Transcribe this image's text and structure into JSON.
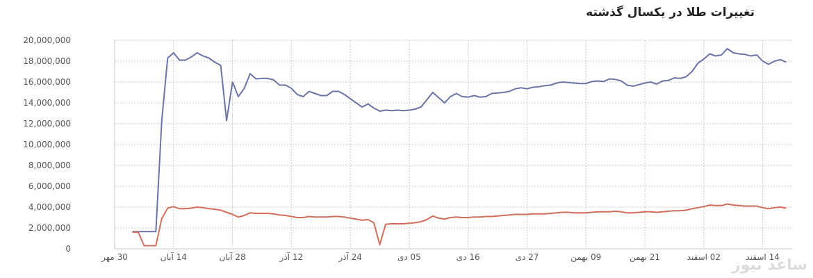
{
  "chart_data": {
    "type": "line",
    "title": "تغییرات طلا در یکسال گذشته",
    "xlabel": "",
    "ylabel": "",
    "ylim": [
      0,
      20000000
    ],
    "grid": true,
    "legend": "none",
    "y_ticks": [
      {
        "value": 0,
        "label": "0"
      },
      {
        "value": 2000000,
        "label": "2,000,000"
      },
      {
        "value": 4000000,
        "label": "4,000,000"
      },
      {
        "value": 6000000,
        "label": "6,000,000"
      },
      {
        "value": 8000000,
        "label": "8,000,000"
      },
      {
        "value": 10000000,
        "label": "10,000,000"
      },
      {
        "value": 12000000,
        "label": "12,000,000"
      },
      {
        "value": 14000000,
        "label": "14,000,000"
      },
      {
        "value": 16000000,
        "label": "16,000,000"
      },
      {
        "value": 18000000,
        "label": "18,000,000"
      },
      {
        "value": 20000000,
        "label": "20,000,000"
      }
    ],
    "x_ticks": [
      {
        "value": 0,
        "label": "30 مهر"
      },
      {
        "value": 1,
        "label": "14 آبان"
      },
      {
        "value": 2,
        "label": "28 آبان"
      },
      {
        "value": 3,
        "label": "12 آذر"
      },
      {
        "value": 4,
        "label": "24 آذر"
      },
      {
        "value": 5,
        "label": "05 دی"
      },
      {
        "value": 6,
        "label": "16 دی"
      },
      {
        "value": 7,
        "label": "27 دی"
      },
      {
        "value": 8,
        "label": "09 بهمن"
      },
      {
        "value": 9,
        "label": "21 بهمن"
      },
      {
        "value": 10,
        "label": "02 اسفند"
      },
      {
        "value": 11,
        "label": "14 اسفند"
      }
    ],
    "series": [
      {
        "color": "#6b74a6",
        "points": [
          [
            0.3,
            1650000
          ],
          [
            0.5,
            1650000
          ],
          [
            0.7,
            1650000
          ],
          [
            0.8,
            12300000
          ],
          [
            0.9,
            18300000
          ],
          [
            1.0,
            18800000
          ],
          [
            1.1,
            18100000
          ],
          [
            1.2,
            18100000
          ],
          [
            1.3,
            18400000
          ],
          [
            1.4,
            18800000
          ],
          [
            1.5,
            18500000
          ],
          [
            1.6,
            18300000
          ],
          [
            1.7,
            17900000
          ],
          [
            1.8,
            17600000
          ],
          [
            1.9,
            12300000
          ],
          [
            2.0,
            16000000
          ],
          [
            2.1,
            14600000
          ],
          [
            2.2,
            15400000
          ],
          [
            2.3,
            16800000
          ],
          [
            2.4,
            16300000
          ],
          [
            2.5,
            16350000
          ],
          [
            2.6,
            16350000
          ],
          [
            2.7,
            16200000
          ],
          [
            2.8,
            15700000
          ],
          [
            2.9,
            15700000
          ],
          [
            3.0,
            15400000
          ],
          [
            3.1,
            14800000
          ],
          [
            3.2,
            14600000
          ],
          [
            3.3,
            15100000
          ],
          [
            3.4,
            14900000
          ],
          [
            3.5,
            14700000
          ],
          [
            3.6,
            14700000
          ],
          [
            3.7,
            15100000
          ],
          [
            3.8,
            15100000
          ],
          [
            3.9,
            14800000
          ],
          [
            4.0,
            14400000
          ],
          [
            4.1,
            14000000
          ],
          [
            4.2,
            13600000
          ],
          [
            4.3,
            13900000
          ],
          [
            4.4,
            13500000
          ],
          [
            4.5,
            13200000
          ],
          [
            4.6,
            13300000
          ],
          [
            4.7,
            13250000
          ],
          [
            4.8,
            13300000
          ],
          [
            4.9,
            13250000
          ],
          [
            5.0,
            13300000
          ],
          [
            5.1,
            13400000
          ],
          [
            5.2,
            13600000
          ],
          [
            5.4,
            15000000
          ],
          [
            5.5,
            14500000
          ],
          [
            5.6,
            14000000
          ],
          [
            5.7,
            14600000
          ],
          [
            5.8,
            14900000
          ],
          [
            5.9,
            14600000
          ],
          [
            6.0,
            14550000
          ],
          [
            6.1,
            14700000
          ],
          [
            6.2,
            14550000
          ],
          [
            6.3,
            14600000
          ],
          [
            6.4,
            14900000
          ],
          [
            6.5,
            14950000
          ],
          [
            6.6,
            15000000
          ],
          [
            6.7,
            15100000
          ],
          [
            6.8,
            15350000
          ],
          [
            6.9,
            15450000
          ],
          [
            7.0,
            15350000
          ],
          [
            7.1,
            15500000
          ],
          [
            7.2,
            15550000
          ],
          [
            7.3,
            15650000
          ],
          [
            7.4,
            15700000
          ],
          [
            7.5,
            15900000
          ],
          [
            7.6,
            16000000
          ],
          [
            7.7,
            15950000
          ],
          [
            7.8,
            15900000
          ],
          [
            7.9,
            15850000
          ],
          [
            8.0,
            15850000
          ],
          [
            8.1,
            16050000
          ],
          [
            8.2,
            16100000
          ],
          [
            8.3,
            16050000
          ],
          [
            8.4,
            16300000
          ],
          [
            8.5,
            16250000
          ],
          [
            8.6,
            16100000
          ],
          [
            8.7,
            15700000
          ],
          [
            8.8,
            15600000
          ],
          [
            8.9,
            15750000
          ],
          [
            9.0,
            15900000
          ],
          [
            9.1,
            16000000
          ],
          [
            9.2,
            15800000
          ],
          [
            9.3,
            16100000
          ],
          [
            9.4,
            16150000
          ],
          [
            9.5,
            16400000
          ],
          [
            9.6,
            16350000
          ],
          [
            9.7,
            16500000
          ],
          [
            9.8,
            17000000
          ],
          [
            9.9,
            17800000
          ],
          [
            10.0,
            18200000
          ],
          [
            10.1,
            18700000
          ],
          [
            10.2,
            18500000
          ],
          [
            10.3,
            18600000
          ],
          [
            10.4,
            19200000
          ],
          [
            10.5,
            18800000
          ],
          [
            10.6,
            18700000
          ],
          [
            10.7,
            18650000
          ],
          [
            10.8,
            18500000
          ],
          [
            10.9,
            18600000
          ],
          [
            11.0,
            18000000
          ],
          [
            11.1,
            17700000
          ],
          [
            11.2,
            18000000
          ],
          [
            11.3,
            18150000
          ],
          [
            11.4,
            17900000
          ]
        ]
      },
      {
        "color": "#d36d5b",
        "points": [
          [
            0.3,
            1600000
          ],
          [
            0.4,
            1600000
          ],
          [
            0.5,
            300000
          ],
          [
            0.6,
            300000
          ],
          [
            0.7,
            300000
          ],
          [
            0.8,
            2900000
          ],
          [
            0.9,
            3900000
          ],
          [
            1.0,
            4050000
          ],
          [
            1.1,
            3850000
          ],
          [
            1.2,
            3850000
          ],
          [
            1.3,
            3900000
          ],
          [
            1.4,
            4000000
          ],
          [
            1.5,
            3950000
          ],
          [
            1.6,
            3850000
          ],
          [
            1.7,
            3800000
          ],
          [
            1.8,
            3700000
          ],
          [
            1.9,
            3500000
          ],
          [
            2.0,
            3300000
          ],
          [
            2.1,
            3050000
          ],
          [
            2.2,
            3200000
          ],
          [
            2.3,
            3450000
          ],
          [
            2.4,
            3400000
          ],
          [
            2.5,
            3400000
          ],
          [
            2.6,
            3400000
          ],
          [
            2.7,
            3350000
          ],
          [
            2.8,
            3250000
          ],
          [
            2.9,
            3200000
          ],
          [
            3.0,
            3100000
          ],
          [
            3.1,
            3000000
          ],
          [
            3.2,
            3000000
          ],
          [
            3.3,
            3100000
          ],
          [
            3.4,
            3050000
          ],
          [
            3.5,
            3050000
          ],
          [
            3.6,
            3050000
          ],
          [
            3.7,
            3100000
          ],
          [
            3.8,
            3100000
          ],
          [
            3.9,
            3050000
          ],
          [
            4.0,
            2950000
          ],
          [
            4.1,
            2850000
          ],
          [
            4.2,
            2750000
          ],
          [
            4.3,
            2800000
          ],
          [
            4.4,
            2500000
          ],
          [
            4.5,
            400000
          ],
          [
            4.6,
            2350000
          ],
          [
            4.7,
            2400000
          ],
          [
            4.8,
            2400000
          ],
          [
            4.9,
            2400000
          ],
          [
            5.0,
            2450000
          ],
          [
            5.1,
            2500000
          ],
          [
            5.2,
            2600000
          ],
          [
            5.3,
            2800000
          ],
          [
            5.4,
            3150000
          ],
          [
            5.5,
            2950000
          ],
          [
            5.6,
            2850000
          ],
          [
            5.7,
            3000000
          ],
          [
            5.8,
            3050000
          ],
          [
            5.9,
            3000000
          ],
          [
            6.0,
            3000000
          ],
          [
            6.1,
            3050000
          ],
          [
            6.2,
            3050000
          ],
          [
            6.3,
            3100000
          ],
          [
            6.4,
            3100000
          ],
          [
            6.5,
            3150000
          ],
          [
            6.6,
            3200000
          ],
          [
            6.7,
            3250000
          ],
          [
            6.8,
            3300000
          ],
          [
            6.9,
            3300000
          ],
          [
            7.0,
            3300000
          ],
          [
            7.1,
            3350000
          ],
          [
            7.2,
            3350000
          ],
          [
            7.3,
            3350000
          ],
          [
            7.4,
            3400000
          ],
          [
            7.5,
            3450000
          ],
          [
            7.6,
            3500000
          ],
          [
            7.7,
            3500000
          ],
          [
            7.8,
            3450000
          ],
          [
            7.9,
            3450000
          ],
          [
            8.0,
            3450000
          ],
          [
            8.1,
            3500000
          ],
          [
            8.2,
            3550000
          ],
          [
            8.3,
            3550000
          ],
          [
            8.4,
            3550000
          ],
          [
            8.5,
            3600000
          ],
          [
            8.6,
            3550000
          ],
          [
            8.7,
            3450000
          ],
          [
            8.8,
            3450000
          ],
          [
            8.9,
            3500000
          ],
          [
            9.0,
            3550000
          ],
          [
            9.1,
            3550000
          ],
          [
            9.2,
            3500000
          ],
          [
            9.3,
            3550000
          ],
          [
            9.4,
            3600000
          ],
          [
            9.5,
            3650000
          ],
          [
            9.6,
            3650000
          ],
          [
            9.7,
            3700000
          ],
          [
            9.8,
            3850000
          ],
          [
            9.9,
            3950000
          ],
          [
            10.0,
            4050000
          ],
          [
            10.1,
            4200000
          ],
          [
            10.2,
            4150000
          ],
          [
            10.3,
            4150000
          ],
          [
            10.4,
            4300000
          ],
          [
            10.5,
            4200000
          ],
          [
            10.6,
            4150000
          ],
          [
            10.7,
            4100000
          ],
          [
            10.8,
            4100000
          ],
          [
            10.9,
            4100000
          ],
          [
            11.0,
            3950000
          ],
          [
            11.1,
            3850000
          ],
          [
            11.2,
            3950000
          ],
          [
            11.3,
            4000000
          ],
          [
            11.4,
            3900000
          ]
        ]
      }
    ]
  },
  "watermark": "ساعد نیوز"
}
